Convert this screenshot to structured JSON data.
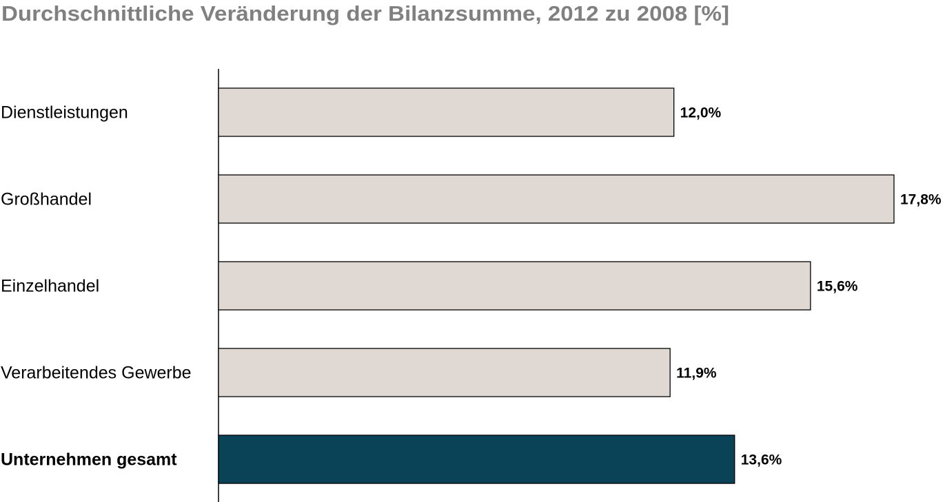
{
  "chart_data": {
    "type": "bar",
    "orientation": "horizontal",
    "title": "Durchschnittliche Veränderung der Bilanzsumme, 2012 zu 2008 [%]",
    "categories": [
      "Dienstleistungen",
      "Großhandel",
      "Einzelhandel",
      "Verarbeitendes Gewerbe",
      "Unternehmen gesamt"
    ],
    "values": [
      12.0,
      17.8,
      15.6,
      11.9,
      13.6
    ],
    "value_labels": [
      "12,0%",
      "17,8%",
      "15,6%",
      "11,9%",
      "13,6%"
    ],
    "colors": [
      "#e0d8d3",
      "#e0d8d3",
      "#e0d8d3",
      "#e0d8d3",
      "#0a4257"
    ]
  }
}
